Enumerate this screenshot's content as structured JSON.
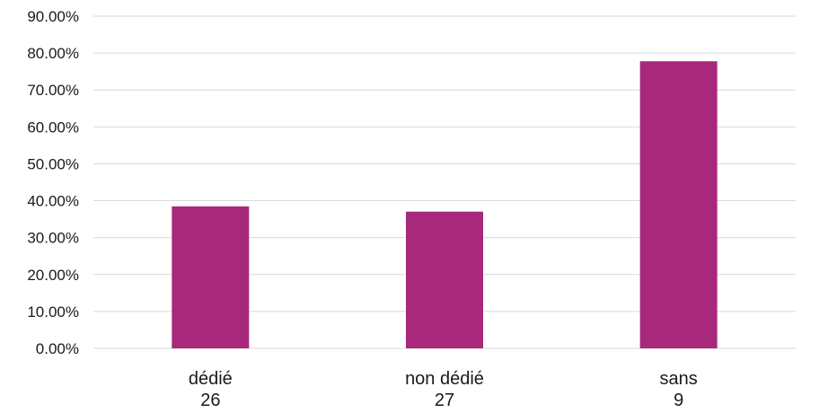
{
  "chart_data": {
    "type": "bar",
    "categories": [
      {
        "label": "dédié",
        "count": "26"
      },
      {
        "label": "non dédié",
        "count": "27"
      },
      {
        "label": "sans",
        "count": "9"
      }
    ],
    "values": [
      38.46,
      37.04,
      77.78
    ],
    "value_format": "percent, 2 decimals",
    "ylim": [
      0,
      90
    ],
    "y_ticks": [
      "0.00%",
      "10.00%",
      "20.00%",
      "30.00%",
      "40.00%",
      "50.00%",
      "60.00%",
      "70.00%",
      "80.00%",
      "90.00%"
    ],
    "grid": "horizontal",
    "legend": "none",
    "colors": {
      "bar": "#a8297c",
      "grid": "#d9d9d9",
      "text": "#1a1a1a"
    }
  }
}
